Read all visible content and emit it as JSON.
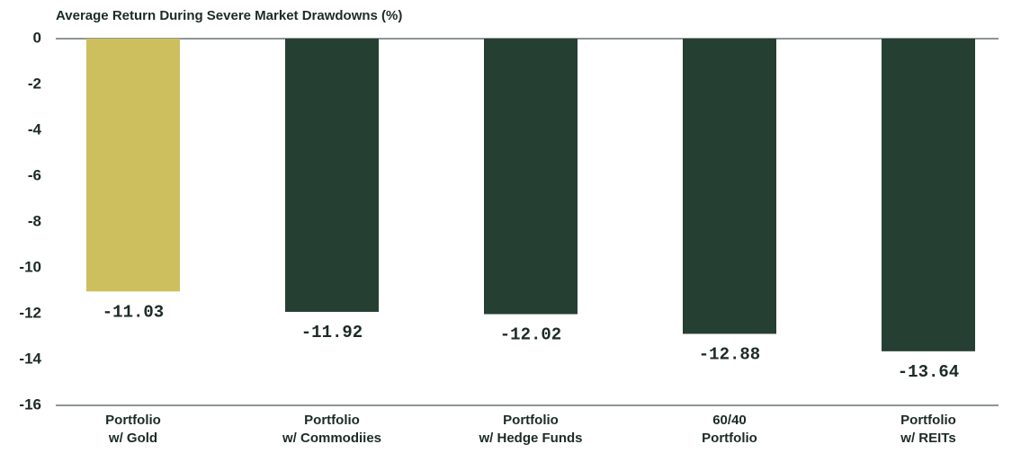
{
  "chart_data": {
    "type": "bar",
    "title": "Average Return During Severe Market Drawdowns (%)",
    "categories": [
      "Portfolio\nw/ Gold",
      "Portfolio\nw/ Commodiies",
      "Portfolio\nw/ Hedge Funds",
      "60/40\nPortfolio",
      "Portfolio\nw/ REITs"
    ],
    "values": [
      -11.03,
      -11.92,
      -12.02,
      -12.88,
      -13.64
    ],
    "colors": [
      "#cdbf5e",
      "#263f33",
      "#263f33",
      "#263f33",
      "#263f33"
    ],
    "ylim": [
      -16,
      0
    ],
    "yticks": [
      0,
      -2,
      -4,
      -6,
      -8,
      -10,
      -12,
      -14,
      -16
    ],
    "grid": false
  }
}
